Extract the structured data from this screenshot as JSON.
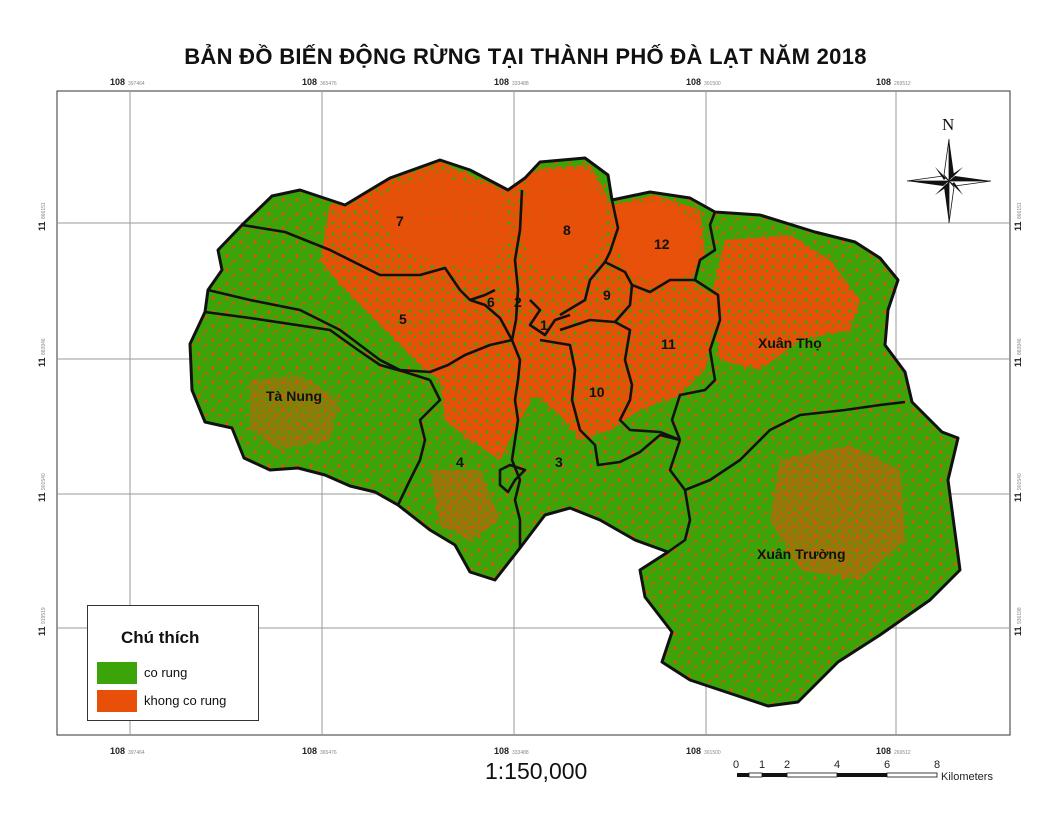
{
  "title": "BẢN ĐỒ BIẾN ĐỘNG RỪNG TẠI THÀNH PHỐ ĐÀ LẠT NĂM 2018",
  "colors": {
    "forest": "#3aa409",
    "nonforest": "#e8500a",
    "border": "#111111",
    "grid": "#9a9a9a"
  },
  "grid": {
    "lon_major": "108",
    "lon_minor": [
      "397464",
      "365476",
      "333488",
      "301500",
      "269512"
    ],
    "lat_major": "11",
    "lat_minor": [
      "866151",
      "883946",
      "901540",
      "919519",
      "936198"
    ]
  },
  "regions": {
    "r1": "1",
    "r2": "2",
    "r3": "3",
    "r4": "4",
    "r5": "5",
    "r6": "6",
    "r7": "7",
    "r8": "8",
    "r9": "9",
    "r10": "10",
    "r11": "11",
    "r12": "12",
    "xuan_tho": "Xuân Thọ",
    "ta_nung": "Tà Nung",
    "xuan_truong": "Xuân Trường"
  },
  "north": {
    "label": "N"
  },
  "legend": {
    "title": "Chú thích",
    "items": [
      {
        "label": "co rung",
        "color": "#3aa409"
      },
      {
        "label": "khong co rung",
        "color": "#e8500a"
      }
    ]
  },
  "scale": {
    "ratio": "1:150,000",
    "ticks": [
      "0",
      "1",
      "2",
      "4",
      "6",
      "8"
    ],
    "unit": "Kilometers"
  }
}
